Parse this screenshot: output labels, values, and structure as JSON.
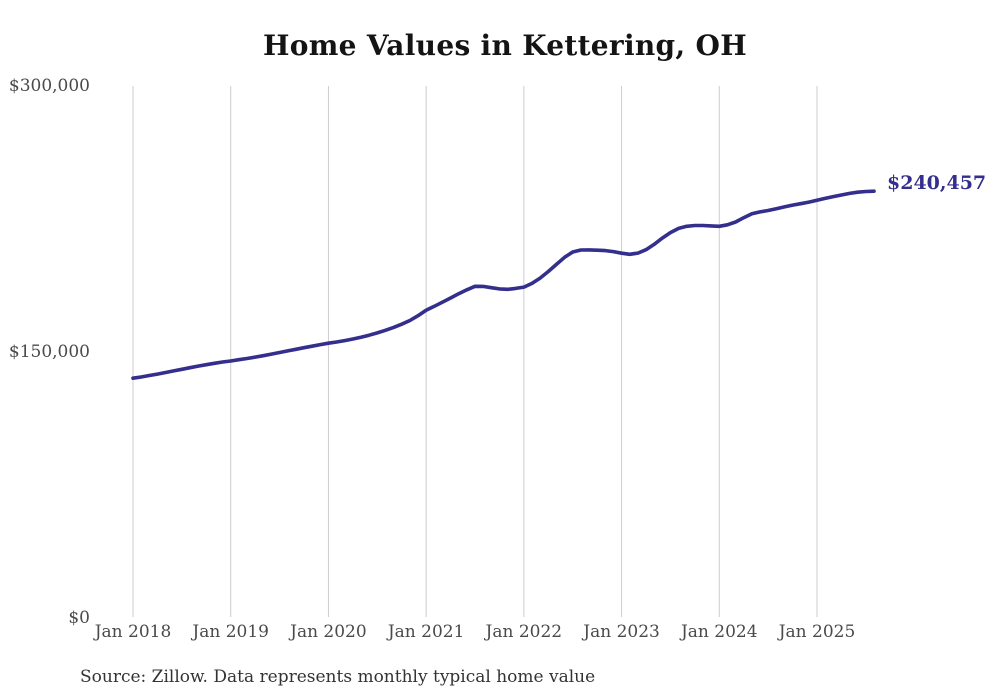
{
  "chart": {
    "title": "Home Values in Kettering, OH",
    "source_note": "Source: Zillow. Data represents monthly typical home value",
    "end_label": "$240,457"
  },
  "colors": {
    "background": "#ffffff",
    "line": "#342e8d",
    "grid": "#cccccc",
    "axis_text": "#4a4a4a",
    "title_text": "#141414",
    "source_text": "#333333"
  },
  "chart_data": {
    "type": "line",
    "title": "Home Values in Kettering, OH",
    "unit": "USD",
    "frequency": "monthly",
    "start_month": "2018-01",
    "end_month": "2025-08",
    "values": [
      135100,
      135800,
      136600,
      137400,
      138300,
      139200,
      140100,
      141000,
      141900,
      142700,
      143500,
      144200,
      144800,
      145500,
      146200,
      147000,
      147800,
      148700,
      149600,
      150500,
      151400,
      152300,
      153100,
      154000,
      154800,
      155500,
      156300,
      157200,
      158200,
      159300,
      160600,
      162100,
      163700,
      165500,
      167600,
      170300,
      173400,
      175600,
      177900,
      180300,
      182700,
      184900,
      186900,
      186800,
      186100,
      185400,
      185200,
      185700,
      186400,
      188500,
      191500,
      195200,
      199200,
      203200,
      206200,
      207300,
      207400,
      207200,
      207000,
      206400,
      205500,
      204900,
      205600,
      207500,
      210500,
      214000,
      217100,
      219500,
      220700,
      221100,
      221100,
      220900,
      220700,
      221500,
      223100,
      225500,
      227700,
      228800,
      229600,
      230600,
      231600,
      232600,
      233400,
      234300,
      235400,
      236400,
      237400,
      238300,
      239200,
      239900,
      240300,
      240457
    ],
    "last_value": 240457,
    "last_value_label": "$240,457",
    "x_tick_labels": [
      "Jan 2018",
      "Jan 2019",
      "Jan 2020",
      "Jan 2021",
      "Jan 2022",
      "Jan 2023",
      "Jan 2024",
      "Jan 2025"
    ],
    "x_tick_month_indices": [
      0,
      12,
      24,
      36,
      48,
      60,
      72,
      84
    ],
    "y_tick_labels": [
      "$0",
      "$150,000",
      "$300,000"
    ],
    "y_tick_values": [
      0,
      150000,
      300000
    ],
    "ylim": [
      0,
      300000
    ],
    "grid": "vertical-only",
    "legend": "none"
  }
}
